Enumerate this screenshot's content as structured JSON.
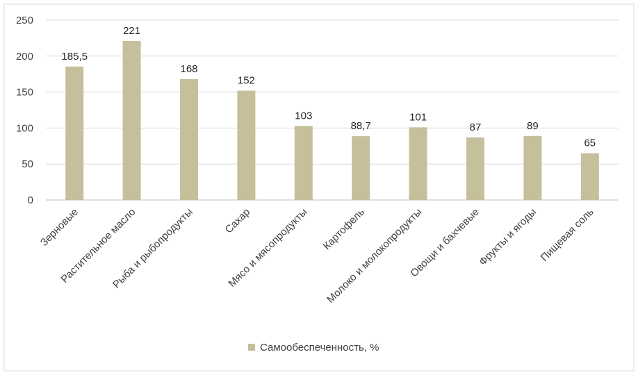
{
  "chart_data": {
    "type": "bar",
    "categories": [
      "Зерновые",
      "Растительное масло",
      "Рыба и рыбопродукты",
      "Сахар",
      "Мясо и мясопродукты",
      "Картофель",
      "Молоко и молокопродукты",
      "Овощи и бахчевые",
      "Фрукты и ягоды",
      "Пищевая соль"
    ],
    "series": [
      {
        "name": "Самообеспеченность, %",
        "values": [
          185.5,
          221,
          168,
          152,
          103,
          88.7,
          101,
          87,
          89,
          65
        ],
        "labels": [
          "185,5",
          "221",
          "168",
          "152",
          "103",
          "88,7",
          "101",
          "87",
          "89",
          "65"
        ],
        "color": "#c6bf9b"
      }
    ],
    "title": "",
    "xlabel": "",
    "ylabel": "",
    "ylim": [
      0,
      250
    ],
    "yticks": [
      "0",
      "50",
      "100",
      "150",
      "200",
      "250"
    ],
    "grid": true,
    "legend_position": "bottom"
  }
}
